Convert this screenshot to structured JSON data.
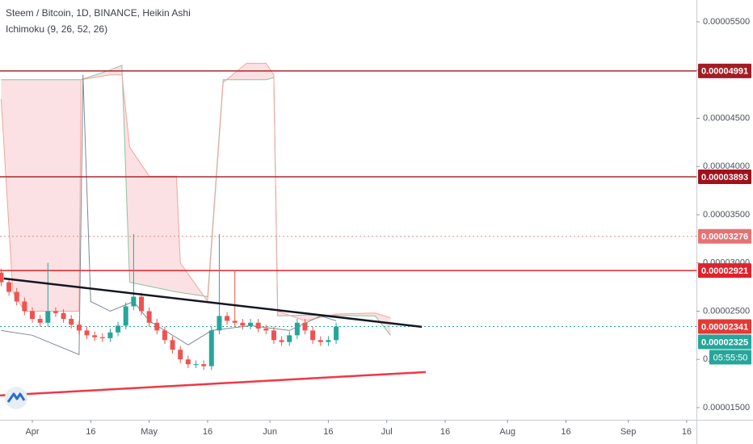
{
  "chart_data": {
    "type": "candlestick",
    "title": "Steem / Bitcoin, 1D, BINANCE, Heikin Ashi",
    "subtitle": "Ichimoku (9, 26, 52, 26)",
    "up_color": "#26a69a",
    "down_color": "#ef5350",
    "xlim": [
      -8.3,
      170.5
    ],
    "xticks": [
      {
        "value": 0,
        "label": "Apr"
      },
      {
        "value": 15,
        "label": "16"
      },
      {
        "value": 30,
        "label": "May"
      },
      {
        "value": 45,
        "label": "16"
      },
      {
        "value": 61,
        "label": "Jun"
      },
      {
        "value": 76,
        "label": "16"
      },
      {
        "value": 91,
        "label": "Jul"
      },
      {
        "value": 106,
        "label": "16"
      },
      {
        "value": 122,
        "label": "Aug"
      },
      {
        "value": 137,
        "label": "16"
      },
      {
        "value": 153,
        "label": "Sep"
      },
      {
        "value": 168,
        "label": "16"
      }
    ],
    "ylim": [
      1.374e-05,
      5.726e-05
    ],
    "yticks": [
      {
        "value": 5.5e-05,
        "label": "0.00005500"
      },
      {
        "value": 5e-05,
        "label": "0.00005000"
      },
      {
        "value": 4.5e-05,
        "label": "0.00004500"
      },
      {
        "value": 4e-05,
        "label": "0.00004000"
      },
      {
        "value": 3.5e-05,
        "label": "0.00003500"
      },
      {
        "value": 3e-05,
        "label": "0.00003000"
      },
      {
        "value": 2.5e-05,
        "label": "0.00002500"
      },
      {
        "value": 2e-05,
        "label": "0.00002000"
      },
      {
        "value": 1.5e-05,
        "label": "0.00001500"
      }
    ],
    "x": [
      -8,
      -6,
      -4,
      -2,
      0,
      2,
      4,
      6,
      8,
      10,
      12,
      14,
      16,
      18,
      20,
      22,
      24,
      26,
      28,
      30,
      32,
      34,
      36,
      38,
      40,
      42,
      44,
      46,
      48,
      50,
      52,
      54,
      56,
      58,
      60,
      62,
      64,
      66,
      68,
      70,
      72,
      74,
      76,
      78
    ],
    "open": [
      2.9e-05,
      2.8e-05,
      2.7e-05,
      2.6e-05,
      2.5e-05,
      2.42e-05,
      2.38e-05,
      2.5e-05,
      2.48e-05,
      2.42e-05,
      2.36e-05,
      2.3e-05,
      2.25e-05,
      2.23e-05,
      2.22e-05,
      2.28e-05,
      2.35e-05,
      2.55e-05,
      2.65e-05,
      2.5e-05,
      2.38e-05,
      2.3e-05,
      2.2e-05,
      2.1e-05,
      2e-05,
      1.95e-05,
      1.95e-05,
      1.93e-05,
      2.3e-05,
      2.45e-05,
      2.4e-05,
      2.38e-05,
      2.35e-05,
      2.38e-05,
      2.32e-05,
      2.3e-05,
      2.2e-05,
      2.18e-05,
      2.25e-05,
      2.38e-05,
      2.3e-05,
      2.2e-05,
      2.18e-05,
      2.2e-05
    ],
    "high": [
      2.94e-05,
      2.84e-05,
      2.74e-05,
      2.64e-05,
      2.54e-05,
      2.46e-05,
      3e-05,
      2.54e-05,
      2.52e-05,
      2.46e-05,
      2.4e-05,
      2.34e-05,
      2.29e-05,
      2.27e-05,
      2.32e-05,
      2.39e-05,
      2.59e-05,
      3.3e-05,
      2.69e-05,
      2.54e-05,
      2.42e-05,
      2.34e-05,
      2.24e-05,
      2.14e-05,
      2.04e-05,
      1.99e-05,
      1.99e-05,
      2.34e-05,
      3.3e-05,
      2.49e-05,
      2.92e-05,
      2.42e-05,
      2.42e-05,
      2.42e-05,
      2.36e-05,
      2.34e-05,
      2.24e-05,
      2.29e-05,
      2.42e-05,
      2.42e-05,
      2.34e-05,
      2.24e-05,
      2.24e-05,
      2.381e-05
    ],
    "low": [
      2.76e-05,
      2.66e-05,
      2.56e-05,
      2.46e-05,
      2.38e-05,
      2.34e-05,
      2.34e-05,
      2.44e-05,
      2.38e-05,
      2.32e-05,
      2.26e-05,
      2.21e-05,
      2.19e-05,
      2.18e-05,
      2.18e-05,
      2.24e-05,
      2.31e-05,
      2.51e-05,
      2.46e-05,
      2.34e-05,
      2.26e-05,
      2.16e-05,
      2.06e-05,
      1.96e-05,
      1.91e-05,
      1.91e-05,
      1.89e-05,
      1.89e-05,
      2.26e-05,
      2.36e-05,
      2.34e-05,
      2.31e-05,
      2.31e-05,
      2.28e-05,
      2.26e-05,
      2.16e-05,
      2.14e-05,
      2.14e-05,
      2.21e-05,
      2.26e-05,
      2.16e-05,
      2.14e-05,
      2.14e-05,
      2.16e-05
    ],
    "close": [
      2.8e-05,
      2.7e-05,
      2.6e-05,
      2.5e-05,
      2.42e-05,
      2.38e-05,
      2.5e-05,
      2.48e-05,
      2.42e-05,
      2.36e-05,
      2.3e-05,
      2.25e-05,
      2.23e-05,
      2.22e-05,
      2.28e-05,
      2.35e-05,
      2.55e-05,
      2.65e-05,
      2.5e-05,
      2.38e-05,
      2.3e-05,
      2.2e-05,
      2.1e-05,
      2e-05,
      1.95e-05,
      1.95e-05,
      1.93e-05,
      2.3e-05,
      2.45e-05,
      2.4e-05,
      2.38e-05,
      2.35e-05,
      2.38e-05,
      2.32e-05,
      2.3e-05,
      2.2e-05,
      2.18e-05,
      2.25e-05,
      2.38e-05,
      2.3e-05,
      2.2e-05,
      2.18e-05,
      2.2e-05,
      2.341e-05
    ],
    "cloud": {
      "color": "#f8c8cc",
      "span_a": {
        "color": "#8fbfa4",
        "x": [
          -8,
          12,
          12.5,
          20,
          23,
          25,
          37,
          45,
          49,
          60,
          62,
          63,
          70,
          88,
          92
        ],
        "values": [
          4.9e-05,
          4.9e-05,
          4.9e-05,
          5e-05,
          5.05e-05,
          2.8e-05,
          2.7e-05,
          2.65e-05,
          4.9e-05,
          4.9e-05,
          4.92e-05,
          2.45e-05,
          2.46e-05,
          2.45e-05,
          2.25e-05
        ]
      },
      "span_b": {
        "color": "#f4a39c",
        "x": [
          -8,
          -5,
          -2,
          12,
          12.5,
          20,
          23,
          25,
          30,
          37,
          38,
          45,
          49,
          55,
          60,
          62,
          63,
          70,
          78,
          88,
          92
        ],
        "values": [
          4.7e-05,
          2.7e-05,
          2.5e-05,
          2.5e-05,
          4.9e-05,
          4.95e-05,
          4.95e-05,
          4.2e-05,
          3.9e-05,
          3.9e-05,
          3e-05,
          2.6e-05,
          4.87e-05,
          5.07e-05,
          5.07e-05,
          4.95e-05,
          2.5e-05,
          2.4e-05,
          2.47e-05,
          2.48e-05,
          2.43e-05
        ]
      }
    },
    "lines": [
      {
        "color": "#7d8a96",
        "x": [
          -8,
          0,
          6,
          12,
          13,
          15,
          20,
          26,
          30,
          40,
          46,
          56,
          66,
          74,
          78
        ],
        "values": [
          2.3e-05,
          2.25e-05,
          2.15e-05,
          2.05e-05,
          4.95e-05,
          2.6e-05,
          2.5e-05,
          2.6e-05,
          2.4e-05,
          2.15e-05,
          2.3e-05,
          2.35e-05,
          2.3e-05,
          2.45e-05,
          2.4e-05
        ]
      }
    ],
    "trendlines": [
      {
        "color": "#131722",
        "x": [
          -7.3,
          100
        ],
        "values": [
          2.839e-05,
          2.337e-05
        ]
      },
      {
        "color": "#f23645",
        "x": [
          -8.3,
          101
        ],
        "values": [
          1.626e-05,
          1.869e-05
        ]
      }
    ],
    "hlines": [
      {
        "value": 4.991e-05,
        "label": "0.00004991",
        "color": "#a82a30",
        "box": "#a31d24",
        "dash": false
      },
      {
        "value": 3.893e-05,
        "label": "0.00003893",
        "color": "#a82a30",
        "box": "#a0111b",
        "dash": false
      },
      {
        "value": 3.276e-05,
        "label": "0.00003276",
        "color": "#e88a8a",
        "box": "#e57373",
        "dash": true
      },
      {
        "value": 2.921e-05,
        "label": "0.00002921",
        "color": "#e0222c",
        "box": "#e0222c",
        "dash": false
      },
      {
        "value": 2.341e-05,
        "label": "0.00002341",
        "color": "#26a69a",
        "box": "#e53935",
        "dash": true
      },
      {
        "value": 2.325e-05,
        "label": "0.00002325",
        "color": null,
        "box": "#26a69a",
        "dash": false
      }
    ],
    "countdown": "05:55:50"
  }
}
